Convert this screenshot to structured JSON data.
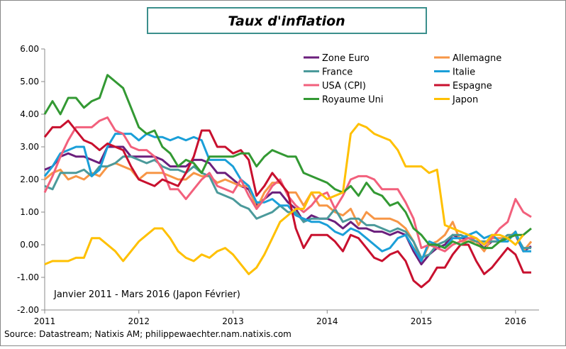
{
  "chart_data": {
    "type": "line",
    "title": "Taux d'inflation",
    "annotation": "Janvier 2011 - Mars 2016 (Japon Février)",
    "source": "Source: Datastream; Natixis AM; philippewaechter.nam.natixis.com",
    "grid": false,
    "legend_position": "top-right",
    "xlim": [
      2011,
      2016.25
    ],
    "xticks": [
      2011,
      2012,
      2013,
      2014,
      2015,
      2016
    ],
    "ylim": [
      -2,
      6
    ],
    "yticks": [
      {
        "value": -2,
        "label": "-2.00"
      },
      {
        "value": -1,
        "label": "-1.00"
      },
      {
        "value": 0,
        "label": "0.00"
      },
      {
        "value": 1,
        "label": "1.00"
      },
      {
        "value": 2,
        "label": "2.00"
      },
      {
        "value": 3,
        "label": "3.00"
      },
      {
        "value": 4,
        "label": "4.00"
      },
      {
        "value": 5,
        "label": "5.00"
      },
      {
        "value": 6,
        "label": "6.00"
      }
    ],
    "x": [
      2011,
      2011.083,
      2011.167,
      2011.25,
      2011.333,
      2011.417,
      2011.5,
      2011.583,
      2011.667,
      2011.75,
      2011.833,
      2011.917,
      2012,
      2012.083,
      2012.167,
      2012.25,
      2012.333,
      2012.417,
      2012.5,
      2012.583,
      2012.667,
      2012.75,
      2012.833,
      2012.917,
      2013,
      2013.083,
      2013.167,
      2013.25,
      2013.333,
      2013.417,
      2013.5,
      2013.583,
      2013.667,
      2013.75,
      2013.833,
      2013.917,
      2014,
      2014.083,
      2014.167,
      2014.25,
      2014.333,
      2014.417,
      2014.5,
      2014.583,
      2014.667,
      2014.75,
      2014.833,
      2014.917,
      2015,
      2015.083,
      2015.167,
      2015.25,
      2015.333,
      2015.417,
      2015.5,
      2015.583,
      2015.667,
      2015.75,
      2015.833,
      2015.917,
      2016,
      2016.083,
      2016.167
    ],
    "series": [
      {
        "name": "Zone Euro",
        "color": "#6b1f7c",
        "values": [
          2.3,
          2.4,
          2.7,
          2.8,
          2.7,
          2.7,
          2.6,
          2.5,
          3.0,
          3.0,
          3.0,
          2.7,
          2.7,
          2.7,
          2.7,
          2.6,
          2.4,
          2.4,
          2.4,
          2.6,
          2.6,
          2.5,
          2.2,
          2.2,
          2.0,
          1.8,
          1.7,
          1.2,
          1.4,
          1.6,
          1.6,
          1.3,
          1.1,
          0.7,
          0.9,
          0.8,
          0.8,
          0.7,
          0.5,
          0.7,
          0.5,
          0.5,
          0.4,
          0.4,
          0.3,
          0.4,
          0.3,
          -0.2,
          -0.6,
          -0.3,
          -0.1,
          0.0,
          0.3,
          0.2,
          0.2,
          0.1,
          -0.1,
          0.1,
          0.1,
          0.2,
          0.3,
          -0.2,
          -0.05
        ]
      },
      {
        "name": "Allemagne",
        "color": "#f79646",
        "values": [
          2.0,
          2.2,
          2.3,
          2.0,
          2.1,
          2.0,
          2.2,
          2.1,
          2.4,
          2.5,
          2.4,
          2.3,
          2.0,
          2.2,
          2.2,
          2.2,
          2.1,
          2.0,
          2.0,
          2.2,
          2.1,
          2.1,
          1.9,
          2.0,
          1.9,
          1.8,
          1.8,
          1.1,
          1.6,
          1.9,
          1.9,
          1.6,
          1.6,
          1.2,
          1.6,
          1.2,
          1.2,
          1.0,
          0.9,
          1.1,
          0.6,
          1.0,
          0.8,
          0.8,
          0.8,
          0.7,
          0.5,
          0.1,
          -0.5,
          0.0,
          0.1,
          0.3,
          0.7,
          0.1,
          0.1,
          0.1,
          -0.2,
          0.2,
          0.2,
          0.2,
          0.4,
          -0.2,
          0.1
        ]
      },
      {
        "name": "France",
        "color": "#4b9a9b",
        "values": [
          1.8,
          1.7,
          2.2,
          2.2,
          2.2,
          2.3,
          2.1,
          2.4,
          2.4,
          2.5,
          2.7,
          2.7,
          2.6,
          2.5,
          2.6,
          2.4,
          2.3,
          2.3,
          2.2,
          2.4,
          2.2,
          2.1,
          1.6,
          1.5,
          1.4,
          1.2,
          1.1,
          0.8,
          0.9,
          1.0,
          1.2,
          1.0,
          1.0,
          0.7,
          0.8,
          0.8,
          0.8,
          1.1,
          0.7,
          0.8,
          0.8,
          0.6,
          0.6,
          0.5,
          0.4,
          0.5,
          0.4,
          0.1,
          -0.4,
          -0.3,
          0.0,
          0.1,
          0.3,
          0.3,
          0.2,
          0.1,
          0.1,
          0.1,
          0.1,
          0.3,
          0.3,
          -0.1,
          -0.1
        ]
      },
      {
        "name": "Italie",
        "color": "#1a9fd8",
        "values": [
          2.1,
          2.4,
          2.8,
          2.9,
          3.0,
          3.0,
          2.1,
          2.3,
          3.0,
          3.4,
          3.4,
          3.4,
          3.2,
          3.4,
          3.3,
          3.3,
          3.2,
          3.3,
          3.2,
          3.3,
          3.2,
          2.6,
          2.6,
          2.6,
          2.4,
          2.0,
          1.8,
          1.3,
          1.3,
          1.4,
          1.2,
          1.2,
          0.9,
          0.8,
          0.7,
          0.7,
          0.6,
          0.4,
          0.3,
          0.5,
          0.4,
          0.2,
          0.0,
          -0.2,
          -0.1,
          0.2,
          0.3,
          -0.1,
          -0.5,
          0.1,
          0.0,
          -0.1,
          0.2,
          0.2,
          0.3,
          0.4,
          0.2,
          0.3,
          0.1,
          0.1,
          0.4,
          -0.2,
          -0.2
        ]
      },
      {
        "name": "USA (CPI)",
        "color": "#f2607c",
        "values": [
          1.6,
          2.1,
          2.7,
          3.2,
          3.6,
          3.6,
          3.6,
          3.8,
          3.9,
          3.5,
          3.4,
          3.0,
          2.9,
          2.9,
          2.7,
          2.3,
          1.7,
          1.7,
          1.4,
          1.7,
          2.0,
          2.2,
          1.8,
          1.7,
          1.6,
          2.0,
          1.5,
          1.1,
          1.4,
          1.8,
          2.0,
          1.5,
          1.2,
          1.0,
          1.2,
          1.5,
          1.6,
          1.1,
          1.5,
          2.0,
          2.1,
          2.1,
          2.0,
          1.7,
          1.7,
          1.7,
          1.3,
          0.8,
          -0.1,
          0.0,
          -0.1,
          -0.2,
          0.0,
          0.1,
          0.2,
          0.2,
          0.0,
          0.2,
          0.5,
          0.7,
          1.4,
          1.0,
          0.85
        ]
      },
      {
        "name": "Espagne",
        "color": "#c8102e",
        "values": [
          3.3,
          3.6,
          3.6,
          3.8,
          3.5,
          3.2,
          3.1,
          2.9,
          3.1,
          3.0,
          2.9,
          2.4,
          2.0,
          1.9,
          1.8,
          2.0,
          1.9,
          1.8,
          2.2,
          2.7,
          3.5,
          3.5,
          3.0,
          3.0,
          2.8,
          2.9,
          2.6,
          1.5,
          1.8,
          2.2,
          1.9,
          1.6,
          0.5,
          -0.1,
          0.3,
          0.3,
          0.3,
          0.1,
          -0.2,
          0.3,
          0.2,
          -0.1,
          -0.4,
          -0.5,
          -0.3,
          -0.2,
          -0.5,
          -1.1,
          -1.3,
          -1.1,
          -0.7,
          -0.7,
          -0.3,
          0.0,
          0.0,
          -0.5,
          -0.9,
          -0.7,
          -0.4,
          -0.1,
          -0.3,
          -0.85,
          -0.85
        ]
      },
      {
        "name": "Royaume Uni",
        "color": "#339933",
        "values": [
          4.0,
          4.4,
          4.0,
          4.5,
          4.5,
          4.2,
          4.4,
          4.5,
          5.2,
          5.0,
          4.8,
          4.2,
          3.6,
          3.4,
          3.5,
          3.0,
          2.8,
          2.4,
          2.6,
          2.5,
          2.2,
          2.7,
          2.7,
          2.7,
          2.7,
          2.8,
          2.8,
          2.4,
          2.7,
          2.9,
          2.8,
          2.7,
          2.7,
          2.2,
          2.1,
          2.0,
          1.9,
          1.7,
          1.6,
          1.8,
          1.5,
          1.9,
          1.6,
          1.5,
          1.2,
          1.3,
          1.0,
          0.5,
          0.3,
          0.0,
          0.0,
          -0.1,
          0.1,
          0.0,
          0.1,
          0.0,
          -0.1,
          -0.1,
          0.1,
          0.2,
          0.3,
          0.3,
          0.5
        ]
      },
      {
        "name": "Japon",
        "color": "#ffc000",
        "values": [
          -0.6,
          -0.5,
          -0.5,
          -0.5,
          -0.4,
          -0.4,
          0.2,
          0.2,
          0.0,
          -0.2,
          -0.5,
          -0.2,
          0.1,
          0.3,
          0.5,
          0.5,
          0.2,
          -0.2,
          -0.4,
          -0.5,
          -0.3,
          -0.4,
          -0.2,
          -0.1,
          -0.3,
          -0.6,
          -0.9,
          -0.7,
          -0.3,
          0.2,
          0.7,
          0.9,
          1.1,
          1.1,
          1.6,
          1.6,
          1.4,
          1.5,
          1.6,
          3.4,
          3.7,
          3.6,
          3.4,
          3.3,
          3.2,
          2.9,
          2.4,
          2.4,
          2.4,
          2.2,
          2.3,
          0.6,
          0.5,
          0.4,
          0.3,
          0.2,
          0.0,
          0.3,
          0.3,
          0.2,
          0.0,
          0.3,
          null
        ]
      }
    ]
  }
}
